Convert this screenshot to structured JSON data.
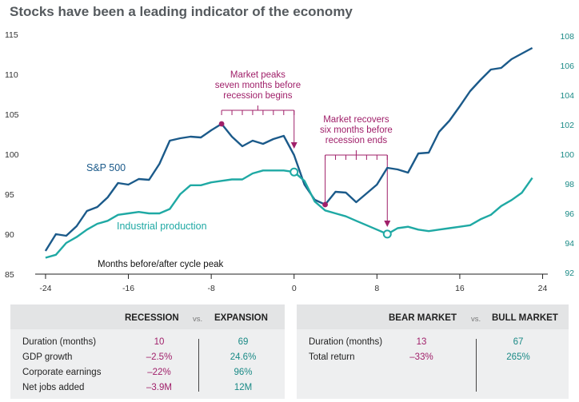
{
  "chart_data": {
    "type": "line",
    "title": "Stocks have been a leading indicator of the economy",
    "xlabel": "Months before/after cycle peak",
    "x_ticks": [
      "-24",
      "-16",
      "-8",
      "0",
      "8",
      "16",
      "24"
    ],
    "xlim": [
      -25,
      24.5
    ],
    "y_left_ticks": [
      "115",
      "110",
      "105",
      "100",
      "95",
      "90",
      "85"
    ],
    "y_left_lim": [
      85,
      116
    ],
    "y_right_ticks": [
      "108",
      "106",
      "104",
      "102",
      "100",
      "98",
      "96",
      "94",
      "92"
    ],
    "y_right_lim": [
      92,
      108
    ],
    "series": [
      {
        "name": "S&P 500",
        "axis": "left",
        "color": "#1b5a8a",
        "x": [
          -24,
          -23,
          -22,
          -21,
          -20,
          -19,
          -18,
          -17,
          -16,
          -15,
          -14,
          -13,
          -12,
          -11,
          -10,
          -9,
          -8,
          -7,
          -6,
          -5,
          -4,
          -3,
          -2,
          -1,
          0,
          1,
          2,
          3,
          4,
          5,
          6,
          7,
          8,
          9,
          10,
          11,
          12,
          13,
          14,
          15,
          16,
          17,
          18,
          19,
          20,
          21,
          22,
          23
        ],
        "values": [
          87.9,
          90.0,
          89.8,
          91.0,
          92.9,
          93.4,
          94.6,
          96.4,
          96.2,
          96.9,
          96.8,
          98.8,
          101.7,
          102.0,
          102.2,
          102.1,
          103.0,
          103.8,
          102.2,
          101.0,
          101.7,
          101.3,
          101.9,
          102.3,
          99.9,
          96.2,
          94.3,
          93.7,
          95.3,
          95.2,
          94.0,
          95.1,
          96.2,
          98.3,
          98.1,
          97.7,
          100.1,
          100.2,
          102.8,
          104.2,
          106.0,
          107.9,
          109.3,
          110.6,
          110.8,
          111.9,
          112.6,
          113.3
        ]
      },
      {
        "name": "Industrial production",
        "axis": "right",
        "color": "#1fa9a4",
        "x": [
          -24,
          -23,
          -22,
          -21,
          -20,
          -19,
          -18,
          -17,
          -16,
          -15,
          -14,
          -13,
          -12,
          -11,
          -10,
          -9,
          -8,
          -7,
          -6,
          -5,
          -4,
          -3,
          -2,
          -1,
          0,
          1,
          2,
          3,
          4,
          5,
          6,
          7,
          8,
          9,
          10,
          11,
          12,
          13,
          14,
          15,
          16,
          17,
          18,
          19,
          20,
          21,
          22,
          23
        ],
        "values": [
          93.0,
          93.2,
          94.0,
          94.4,
          94.9,
          95.3,
          95.5,
          95.9,
          96.0,
          96.1,
          96.0,
          96.0,
          96.3,
          97.3,
          97.9,
          97.9,
          98.1,
          98.2,
          98.3,
          98.3,
          98.7,
          98.9,
          98.9,
          98.9,
          98.8,
          98.2,
          96.8,
          96.2,
          96.0,
          95.8,
          95.5,
          95.2,
          94.9,
          94.6,
          95.0,
          95.1,
          94.9,
          94.8,
          94.9,
          95.0,
          95.1,
          95.2,
          95.6,
          95.9,
          96.5,
          96.9,
          97.4,
          98.4
        ]
      }
    ],
    "annotations": [
      {
        "lines": [
          "Market peaks",
          "seven months before",
          "recession begins"
        ]
      },
      {
        "lines": [
          "Market recovers",
          "six months before",
          "recession ends"
        ]
      }
    ]
  },
  "colors": {
    "sp500": "#1b5a8a",
    "industrial": "#1fa9a4",
    "accent": "#a0206a"
  },
  "tables": {
    "recession_vs_expansion": {
      "col1": "RECESSION",
      "vs": "vs.",
      "col2": "EXPANSION",
      "rows": [
        {
          "label": "Duration (months)",
          "v1": "10",
          "v2": "69"
        },
        {
          "label": "GDP growth",
          "v1": "–2.5%",
          "v2": "24.6%"
        },
        {
          "label": "Corporate earnings",
          "v1": "–22%",
          "v2": "96%"
        },
        {
          "label": "Net jobs added",
          "v1": "–3.9M",
          "v2": "12M"
        }
      ]
    },
    "bear_vs_bull": {
      "col1": "BEAR MARKET",
      "vs": "vs.",
      "col2": "BULL MARKET",
      "rows": [
        {
          "label": "Duration (months)",
          "v1": "13",
          "v2": "67"
        },
        {
          "label": "Total return",
          "v1": "–33%",
          "v2": "265%"
        }
      ]
    }
  }
}
